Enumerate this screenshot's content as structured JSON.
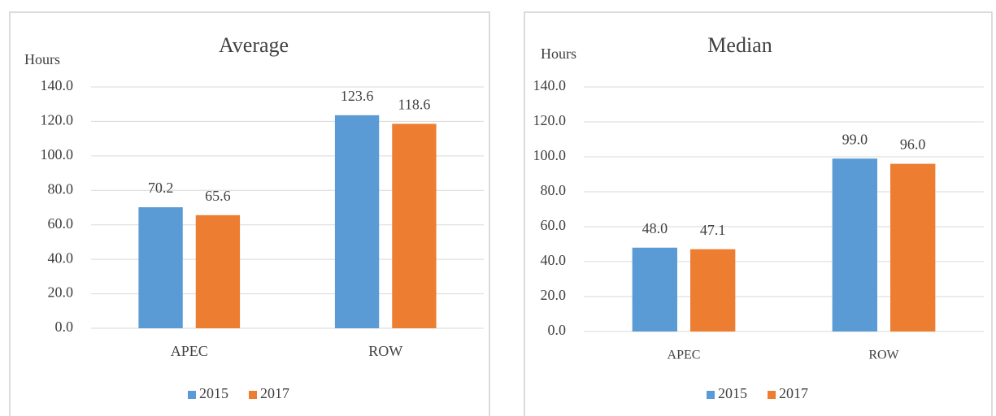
{
  "chart_data": [
    {
      "type": "bar",
      "title": "Average",
      "y_label": "Hours",
      "categories": [
        "APEC",
        "ROW"
      ],
      "series": [
        {
          "name": "2015",
          "color": "#5b9bd5",
          "values": [
            70.2,
            123.6
          ]
        },
        {
          "name": "2017",
          "color": "#ed7d31",
          "values": [
            65.6,
            118.6
          ]
        }
      ],
      "ylim": [
        0,
        140
      ],
      "yticks": [
        {
          "value": 0,
          "label": "0.0"
        },
        {
          "value": 20,
          "label": "20.0"
        },
        {
          "value": 40,
          "label": "40.0"
        },
        {
          "value": 60,
          "label": "60.0"
        },
        {
          "value": 80,
          "label": "80.0"
        },
        {
          "value": 100,
          "label": "100.0"
        },
        {
          "value": 120,
          "label": "120.0"
        },
        {
          "value": 140,
          "label": "140.0"
        }
      ],
      "grid": true,
      "legend": "bottom"
    },
    {
      "type": "bar",
      "title": "Median",
      "y_label": "Hours",
      "categories": [
        "APEC",
        "ROW"
      ],
      "series": [
        {
          "name": "2015",
          "color": "#5b9bd5",
          "values": [
            48.0,
            99.0
          ],
          "value_labels": [
            "48.0",
            "99.0"
          ]
        },
        {
          "name": "2017",
          "color": "#ed7d31",
          "values": [
            47.1,
            96.0
          ],
          "value_labels": [
            "47.1",
            "96.0"
          ]
        }
      ],
      "ylim": [
        0,
        140
      ],
      "yticks": [
        {
          "value": 0,
          "label": "0.0"
        },
        {
          "value": 20,
          "label": "20.0"
        },
        {
          "value": 40,
          "label": "40.0"
        },
        {
          "value": 60,
          "label": "60.0"
        },
        {
          "value": 80,
          "label": "80.0"
        },
        {
          "value": 100,
          "label": "100.0"
        },
        {
          "value": 120,
          "label": "120.0"
        },
        {
          "value": 140,
          "label": "140.0"
        }
      ],
      "grid": true,
      "legend": "bottom"
    }
  ]
}
